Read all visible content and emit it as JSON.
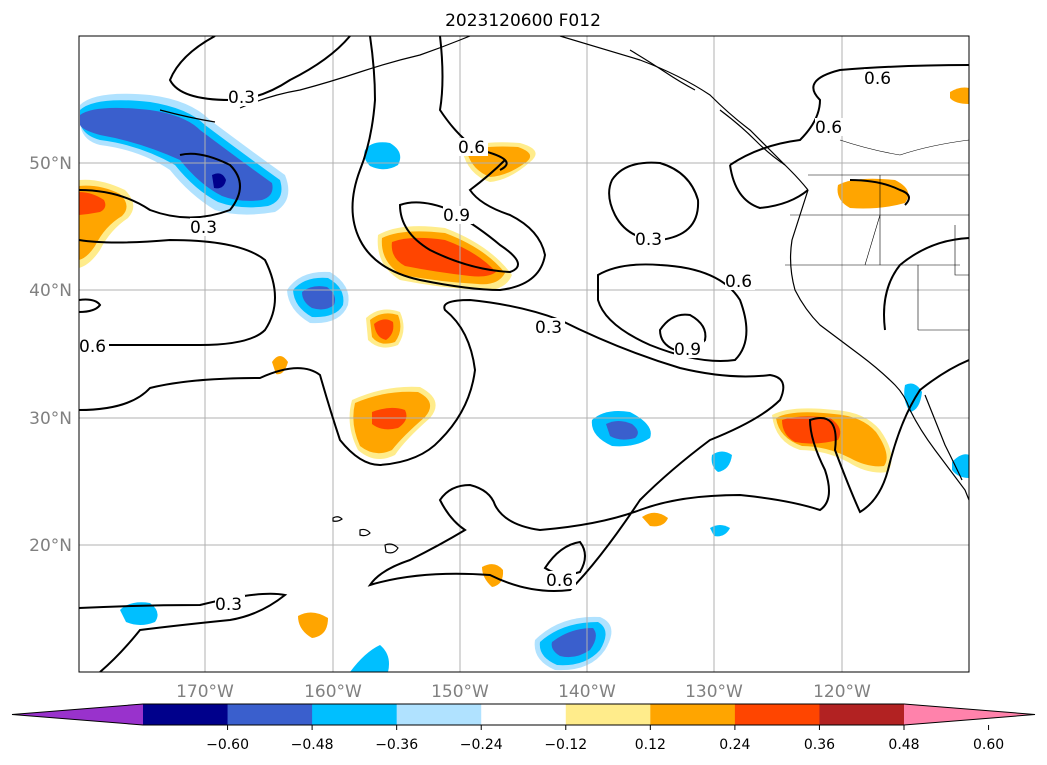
{
  "title": "2023120600 F012",
  "lat_labels": [
    "50°N",
    "40°N",
    "30°N",
    "20°N"
  ],
  "lon_labels": [
    "170°W",
    "160°W",
    "150°W",
    "140°W",
    "130°W",
    "120°W"
  ],
  "contour_labels": [
    "0.3",
    "0.3",
    "0.6",
    "0.9",
    "0.3",
    "0.6",
    "0.6",
    "0.3",
    "0.6",
    "0.9",
    "0.6",
    "0.3",
    "0.6"
  ],
  "colorbar": {
    "tick_labels": [
      "−0.60",
      "−0.48",
      "−0.36",
      "−0.24",
      "−0.12",
      "0.12",
      "0.24",
      "0.36",
      "0.48",
      "0.60"
    ],
    "colors": [
      "#9932cc",
      "#00008b",
      "#3a5fcd",
      "#00bfff",
      "#b0e2ff",
      "#ffffff",
      "#ffec8b",
      "#ffa500",
      "#ff4500",
      "#b22222",
      "#ff82ab"
    ]
  },
  "colors": {
    "contour": "#000000",
    "grid": "#b0b0b0",
    "coast": "#000000"
  }
}
